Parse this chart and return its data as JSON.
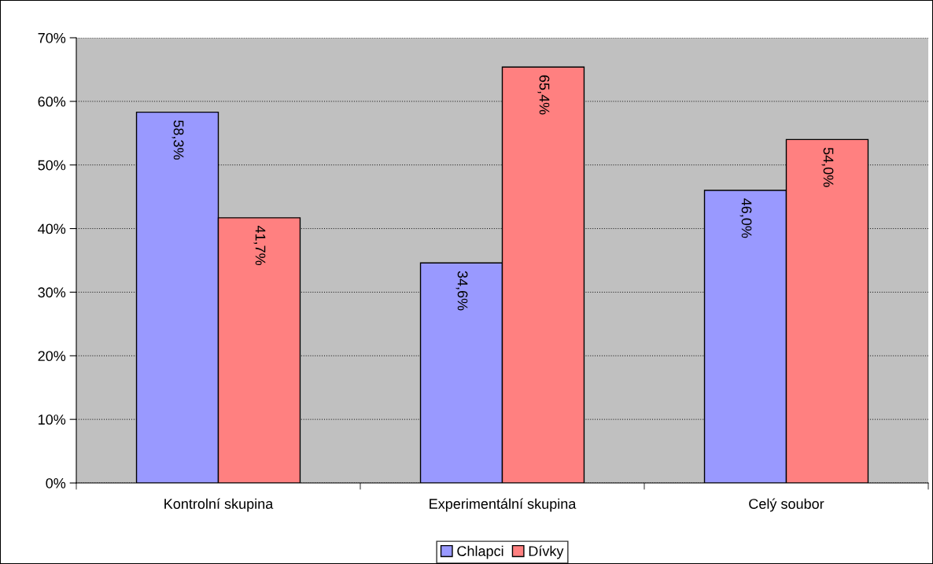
{
  "chart_data": {
    "type": "bar",
    "categories": [
      "Kontrolní skupina",
      "Experimentální skupina",
      "Celý soubor"
    ],
    "series": [
      {
        "name": "Chlapci",
        "color": "#9999ff",
        "values": [
          58.3,
          34.6,
          46.0
        ],
        "value_labels": [
          "58,3%",
          "34,6%",
          "46,0%"
        ]
      },
      {
        "name": "Dívky",
        "color": "#ff8080",
        "values": [
          41.7,
          65.4,
          54.0
        ],
        "value_labels": [
          "41,7%",
          "65,4%",
          "54,0%"
        ]
      }
    ],
    "ylim": [
      0,
      70
    ],
    "yticks": [
      {
        "value": 0,
        "label": "0%"
      },
      {
        "value": 10,
        "label": "10%"
      },
      {
        "value": 20,
        "label": "20%"
      },
      {
        "value": 30,
        "label": "30%"
      },
      {
        "value": 40,
        "label": "40%"
      },
      {
        "value": 50,
        "label": "50%"
      },
      {
        "value": 60,
        "label": "60%"
      },
      {
        "value": 70,
        "label": "70%"
      }
    ],
    "grid": "y",
    "legend": "bottom"
  }
}
